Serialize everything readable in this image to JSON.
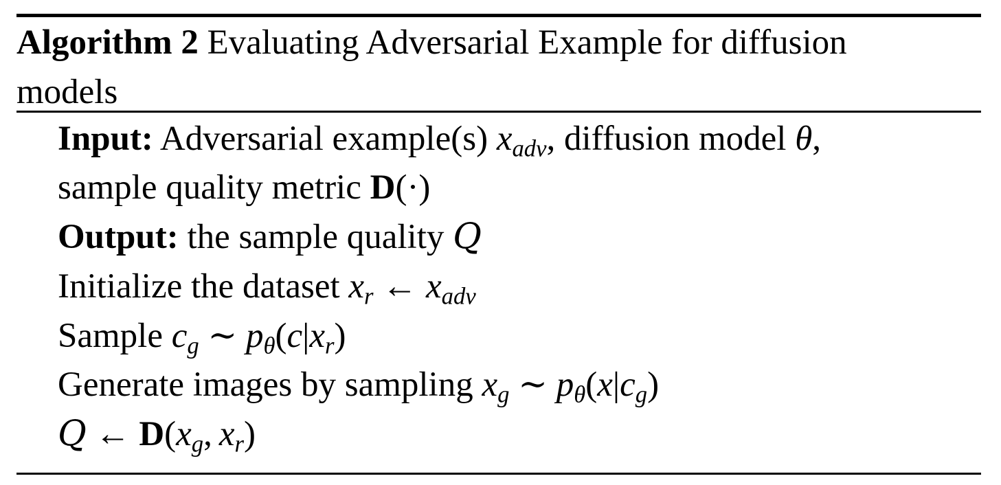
{
  "algorithm": {
    "label": "Algorithm 2",
    "title_line1": "Evaluating Adversarial Example for diffusion",
    "title_line2": "models"
  },
  "input": {
    "label": "Input:",
    "text_a": "Adversarial example(s)",
    "text_b": ", diffusion model",
    "text_c": ",",
    "text_d": "sample quality metric"
  },
  "output": {
    "label": "Output:",
    "text": "the sample quality"
  },
  "steps": {
    "initialize": "Initialize the dataset",
    "sample": "Sample",
    "generate": "Generate images by sampling"
  },
  "math": {
    "x": "x",
    "adv": "adv",
    "theta": "θ",
    "D": "D",
    "dot_arg": "(·)",
    "Q": "Q",
    "r": "r",
    "arrow": "←",
    "c": "c",
    "g": "g",
    "sim": "∼",
    "p": "p",
    "lparen": "(",
    "rparen": ")",
    "bar": "|",
    "comma": ","
  }
}
